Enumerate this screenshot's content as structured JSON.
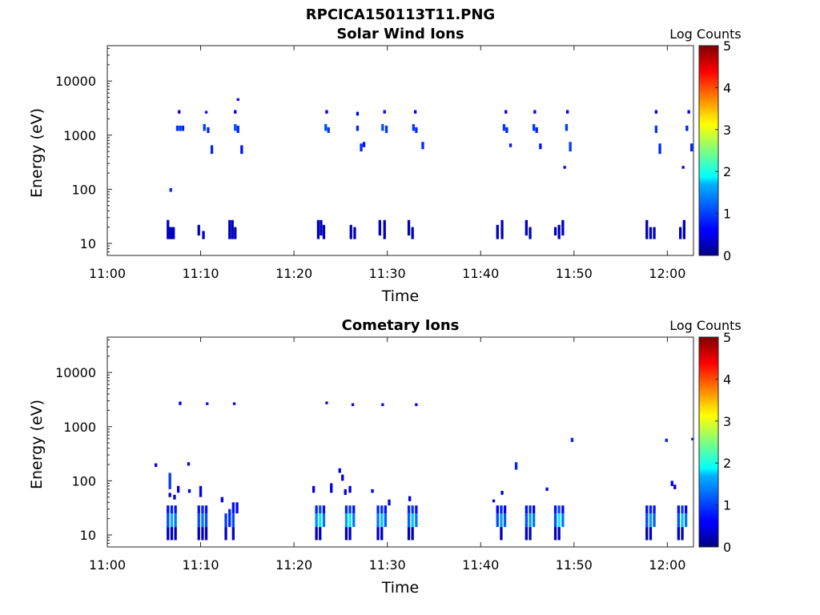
{
  "figure_title": "RPCICA150113T11.PNG",
  "chart_data": [
    {
      "type": "heatmap",
      "title": "Solar Wind Ions",
      "xlabel": "Time",
      "ylabel": "Energy (eV)",
      "x_ticks": [
        "11:00",
        "11:10",
        "11:20",
        "11:30",
        "11:40",
        "11:50",
        "12:00"
      ],
      "x_tick_minutes": [
        0,
        10,
        20,
        30,
        40,
        50,
        60
      ],
      "x_range_minutes": [
        0,
        62.8
      ],
      "y_scale": "log",
      "y_ticks": [
        10,
        100,
        1000,
        10000
      ],
      "y_range_ev": [
        6,
        45000
      ],
      "colorbar": {
        "label": "Log Counts",
        "range": [
          0,
          5
        ],
        "ticks": [
          "0",
          "1",
          "2",
          "3",
          "4",
          "5"
        ]
      },
      "cells": [
        [
          6.5,
          12,
          27,
          0.3
        ],
        [
          6.7,
          12,
          20,
          0.3
        ],
        [
          6.9,
          12,
          20,
          0.3
        ],
        [
          7.1,
          12,
          20,
          0.3
        ],
        [
          6.8,
          90,
          105,
          0.8
        ],
        [
          7.5,
          1200,
          1500,
          0.9
        ],
        [
          7.8,
          1200,
          1500,
          0.9
        ],
        [
          8.1,
          1200,
          1500,
          0.8
        ],
        [
          7.7,
          2500,
          2900,
          0.6
        ],
        [
          9.8,
          14,
          22,
          0.3
        ],
        [
          10.3,
          12,
          17,
          0.3
        ],
        [
          10.4,
          1200,
          1600,
          0.9
        ],
        [
          10.8,
          1100,
          1400,
          0.8
        ],
        [
          11.2,
          450,
          650,
          0.8
        ],
        [
          10.6,
          2500,
          2800,
          0.6
        ],
        [
          13.1,
          12,
          27,
          0.3
        ],
        [
          13.4,
          12,
          27,
          0.3
        ],
        [
          13.7,
          12,
          20,
          0.3
        ],
        [
          13.7,
          1200,
          1600,
          1.0
        ],
        [
          14.0,
          1100,
          1500,
          0.8
        ],
        [
          14.4,
          450,
          650,
          0.7
        ],
        [
          13.7,
          2500,
          2900,
          0.6
        ],
        [
          14.0,
          4300,
          4800,
          0.6
        ],
        [
          22.6,
          12,
          27,
          0.3
        ],
        [
          22.9,
          14,
          27,
          0.3
        ],
        [
          23.2,
          12,
          22,
          0.3
        ],
        [
          23.4,
          1200,
          1600,
          1.0
        ],
        [
          23.7,
          1100,
          1400,
          0.9
        ],
        [
          23.5,
          2500,
          2900,
          0.6
        ],
        [
          26.1,
          12,
          22,
          0.3
        ],
        [
          26.5,
          12,
          20,
          0.3
        ],
        [
          26.8,
          1200,
          1500,
          0.8
        ],
        [
          26.8,
          2300,
          2700,
          0.6
        ],
        [
          27.2,
          500,
          700,
          0.8
        ],
        [
          27.5,
          600,
          750,
          0.7
        ],
        [
          29.2,
          14,
          27,
          0.3
        ],
        [
          29.7,
          12,
          27,
          0.3
        ],
        [
          29.5,
          1200,
          1600,
          1.0
        ],
        [
          29.9,
          1100,
          1500,
          0.9
        ],
        [
          29.7,
          2500,
          2900,
          0.7
        ],
        [
          32.3,
          14,
          27,
          0.3
        ],
        [
          32.7,
          12,
          20,
          0.3
        ],
        [
          32.8,
          1200,
          1600,
          0.9
        ],
        [
          33.1,
          1100,
          1400,
          0.8
        ],
        [
          33.8,
          550,
          750,
          0.8
        ],
        [
          33.0,
          2500,
          2900,
          0.6
        ],
        [
          41.8,
          12,
          22,
          0.3
        ],
        [
          42.3,
          12,
          27,
          0.3
        ],
        [
          42.5,
          1200,
          1600,
          0.9
        ],
        [
          42.8,
          1100,
          1400,
          0.8
        ],
        [
          42.7,
          2500,
          2900,
          0.6
        ],
        [
          43.2,
          600,
          700,
          0.7
        ],
        [
          44.9,
          14,
          27,
          0.3
        ],
        [
          45.3,
          12,
          20,
          0.3
        ],
        [
          45.7,
          1200,
          1600,
          0.9
        ],
        [
          46.0,
          1100,
          1400,
          0.8
        ],
        [
          45.8,
          2500,
          2900,
          0.6
        ],
        [
          46.4,
          550,
          700,
          0.7
        ],
        [
          48.0,
          14,
          20,
          0.3
        ],
        [
          48.4,
          12,
          22,
          0.3
        ],
        [
          48.8,
          14,
          27,
          0.3
        ],
        [
          49.2,
          1200,
          1600,
          0.9
        ],
        [
          49.6,
          500,
          750,
          0.9
        ],
        [
          49.3,
          2500,
          2900,
          0.6
        ],
        [
          49.0,
          240,
          270,
          0.6
        ],
        [
          57.8,
          12,
          27,
          0.3
        ],
        [
          58.2,
          12,
          20,
          0.3
        ],
        [
          58.6,
          12,
          20,
          0.3
        ],
        [
          58.8,
          1100,
          1500,
          0.9
        ],
        [
          59.2,
          450,
          700,
          0.8
        ],
        [
          58.8,
          2500,
          2900,
          0.6
        ],
        [
          61.4,
          12,
          20,
          0.3
        ],
        [
          61.8,
          12,
          27,
          0.3
        ],
        [
          61.7,
          240,
          270,
          0.6
        ],
        [
          62.1,
          1200,
          1500,
          0.8
        ],
        [
          62.6,
          500,
          700,
          0.8
        ],
        [
          62.3,
          2500,
          2900,
          0.6
        ]
      ]
    },
    {
      "type": "heatmap",
      "title": "Cometary Ions",
      "xlabel": "Time",
      "ylabel": "Energy (eV)",
      "x_ticks": [
        "11:00",
        "11:10",
        "11:20",
        "11:30",
        "11:40",
        "11:50",
        "12:00"
      ],
      "x_tick_minutes": [
        0,
        10,
        20,
        30,
        40,
        50,
        60
      ],
      "x_range_minutes": [
        0,
        62.8
      ],
      "y_scale": "log",
      "y_ticks": [
        10,
        100,
        1000,
        10000
      ],
      "y_range_ev": [
        6,
        45000
      ],
      "colorbar": {
        "label": "Log Counts",
        "range": [
          0,
          5
        ],
        "ticks": [
          "0",
          "1",
          "2",
          "3",
          "4",
          "5"
        ]
      },
      "cells": [
        [
          6.5,
          8,
          14,
          0.3
        ],
        [
          6.5,
          14,
          25,
          1.0
        ],
        [
          6.5,
          25,
          35,
          0.7
        ],
        [
          6.9,
          8,
          14,
          0.3
        ],
        [
          6.9,
          14,
          25,
          1.5
        ],
        [
          6.9,
          25,
          35,
          0.8
        ],
        [
          7.3,
          8,
          14,
          0.3
        ],
        [
          7.3,
          14,
          25,
          1.2
        ],
        [
          7.3,
          25,
          35,
          0.7
        ],
        [
          6.7,
          50,
          60,
          0.5
        ],
        [
          6.7,
          70,
          140,
          0.9
        ],
        [
          7.2,
          45,
          55,
          0.4
        ],
        [
          7.6,
          60,
          80,
          0.5
        ],
        [
          7.8,
          2500,
          2900,
          0.6
        ],
        [
          5.2,
          180,
          210,
          0.6
        ],
        [
          8.7,
          190,
          220,
          0.6
        ],
        [
          9.8,
          8,
          14,
          0.3
        ],
        [
          9.8,
          14,
          25,
          1.0
        ],
        [
          9.8,
          25,
          35,
          0.7
        ],
        [
          10.2,
          8,
          14,
          0.3
        ],
        [
          10.2,
          14,
          25,
          1.2
        ],
        [
          10.2,
          25,
          35,
          0.8
        ],
        [
          10.6,
          8,
          14,
          0.3
        ],
        [
          10.6,
          14,
          25,
          1.0
        ],
        [
          10.6,
          25,
          35,
          0.7
        ],
        [
          10.0,
          50,
          80,
          0.6
        ],
        [
          10.7,
          2500,
          2800,
          0.6
        ],
        [
          8.8,
          60,
          70,
          0.5
        ],
        [
          12.7,
          8,
          14,
          0.3
        ],
        [
          12.7,
          14,
          25,
          0.9
        ],
        [
          13.1,
          14,
          30,
          0.8
        ],
        [
          13.5,
          8,
          14,
          0.3
        ],
        [
          13.5,
          14,
          25,
          1.0
        ],
        [
          13.5,
          25,
          40,
          0.7
        ],
        [
          13.9,
          25,
          40,
          0.6
        ],
        [
          12.3,
          40,
          50,
          0.5
        ],
        [
          13.6,
          2500,
          2800,
          0.6
        ],
        [
          22.4,
          8,
          14,
          0.3
        ],
        [
          22.4,
          14,
          25,
          1.3
        ],
        [
          22.4,
          25,
          35,
          0.8
        ],
        [
          22.8,
          8,
          14,
          0.3
        ],
        [
          22.8,
          14,
          25,
          1.8
        ],
        [
          22.8,
          25,
          35,
          1.0
        ],
        [
          23.2,
          14,
          25,
          1.2
        ],
        [
          23.2,
          25,
          35,
          0.7
        ],
        [
          22.1,
          60,
          80,
          0.5
        ],
        [
          23.5,
          2600,
          2900,
          0.6
        ],
        [
          24.0,
          60,
          90,
          0.5
        ],
        [
          25.6,
          8,
          14,
          0.3
        ],
        [
          25.6,
          14,
          25,
          1.4
        ],
        [
          25.6,
          25,
          35,
          0.8
        ],
        [
          26.0,
          8,
          14,
          0.3
        ],
        [
          26.0,
          14,
          25,
          1.8
        ],
        [
          26.0,
          25,
          35,
          0.9
        ],
        [
          26.4,
          14,
          25,
          1.2
        ],
        [
          26.4,
          25,
          35,
          0.7
        ],
        [
          24.9,
          140,
          170,
          0.5
        ],
        [
          25.2,
          100,
          130,
          0.5
        ],
        [
          25.5,
          55,
          70,
          0.5
        ],
        [
          26.0,
          60,
          80,
          0.4
        ],
        [
          26.3,
          2400,
          2700,
          0.6
        ],
        [
          28.4,
          60,
          70,
          0.5
        ],
        [
          29.0,
          8,
          14,
          0.3
        ],
        [
          29.0,
          14,
          25,
          1.2
        ],
        [
          29.0,
          25,
          35,
          0.8
        ],
        [
          29.4,
          8,
          14,
          0.3
        ],
        [
          29.4,
          14,
          25,
          1.6
        ],
        [
          29.4,
          25,
          35,
          0.9
        ],
        [
          29.8,
          14,
          25,
          1.1
        ],
        [
          29.8,
          25,
          35,
          0.7
        ],
        [
          30.2,
          35,
          45,
          0.5
        ],
        [
          29.5,
          2400,
          2700,
          0.6
        ],
        [
          32.3,
          8,
          14,
          0.3
        ],
        [
          32.3,
          14,
          25,
          1.1
        ],
        [
          32.3,
          25,
          35,
          0.8
        ],
        [
          32.7,
          8,
          14,
          0.3
        ],
        [
          32.7,
          14,
          25,
          1.6
        ],
        [
          32.7,
          25,
          35,
          0.9
        ],
        [
          33.1,
          14,
          25,
          1.2
        ],
        [
          33.1,
          25,
          35,
          0.7
        ],
        [
          32.4,
          42,
          52,
          0.5
        ],
        [
          33.1,
          2400,
          2700,
          0.6
        ],
        [
          41.8,
          14,
          25,
          1.0
        ],
        [
          41.8,
          25,
          35,
          0.6
        ],
        [
          42.2,
          8,
          14,
          0.3
        ],
        [
          42.2,
          14,
          25,
          1.4
        ],
        [
          42.2,
          25,
          35,
          0.8
        ],
        [
          42.6,
          14,
          25,
          1.1
        ],
        [
          42.6,
          25,
          35,
          0.6
        ],
        [
          42.3,
          55,
          65,
          0.4
        ],
        [
          41.4,
          40,
          45,
          0.4
        ],
        [
          43.8,
          160,
          220,
          0.8
        ],
        [
          44.9,
          8,
          14,
          0.3
        ],
        [
          44.9,
          14,
          25,
          1.0
        ],
        [
          44.9,
          25,
          35,
          0.7
        ],
        [
          45.3,
          8,
          14,
          0.3
        ],
        [
          45.3,
          14,
          25,
          1.4
        ],
        [
          45.3,
          25,
          35,
          0.8
        ],
        [
          45.7,
          14,
          25,
          1.2
        ],
        [
          45.7,
          25,
          35,
          0.6
        ],
        [
          47.1,
          65,
          75,
          0.6
        ],
        [
          48.0,
          8,
          14,
          0.3
        ],
        [
          48.0,
          14,
          25,
          1.0
        ],
        [
          48.0,
          25,
          35,
          0.7
        ],
        [
          48.4,
          8,
          14,
          0.3
        ],
        [
          48.4,
          14,
          25,
          1.8
        ],
        [
          48.4,
          25,
          35,
          1.0
        ],
        [
          48.8,
          14,
          25,
          1.2
        ],
        [
          48.8,
          25,
          35,
          0.6
        ],
        [
          49.8,
          520,
          620,
          0.8
        ],
        [
          57.8,
          8,
          14,
          0.3
        ],
        [
          57.8,
          14,
          25,
          1.0
        ],
        [
          57.8,
          25,
          35,
          0.7
        ],
        [
          58.2,
          8,
          14,
          0.3
        ],
        [
          58.2,
          14,
          25,
          1.4
        ],
        [
          58.2,
          25,
          35,
          0.8
        ],
        [
          58.6,
          14,
          25,
          1.1
        ],
        [
          58.6,
          25,
          35,
          0.7
        ],
        [
          59.9,
          520,
          600,
          0.8
        ],
        [
          60.5,
          80,
          100,
          0.6
        ],
        [
          60.8,
          70,
          85,
          0.5
        ],
        [
          61.2,
          8,
          14,
          0.3
        ],
        [
          61.2,
          14,
          25,
          1.0
        ],
        [
          61.2,
          25,
          35,
          0.7
        ],
        [
          61.6,
          8,
          14,
          0.3
        ],
        [
          61.6,
          14,
          25,
          1.6
        ],
        [
          61.6,
          25,
          35,
          0.9
        ],
        [
          62.0,
          14,
          25,
          1.2
        ],
        [
          62.0,
          25,
          35,
          0.6
        ],
        [
          62.7,
          560,
          620,
          0.7
        ]
      ]
    }
  ]
}
